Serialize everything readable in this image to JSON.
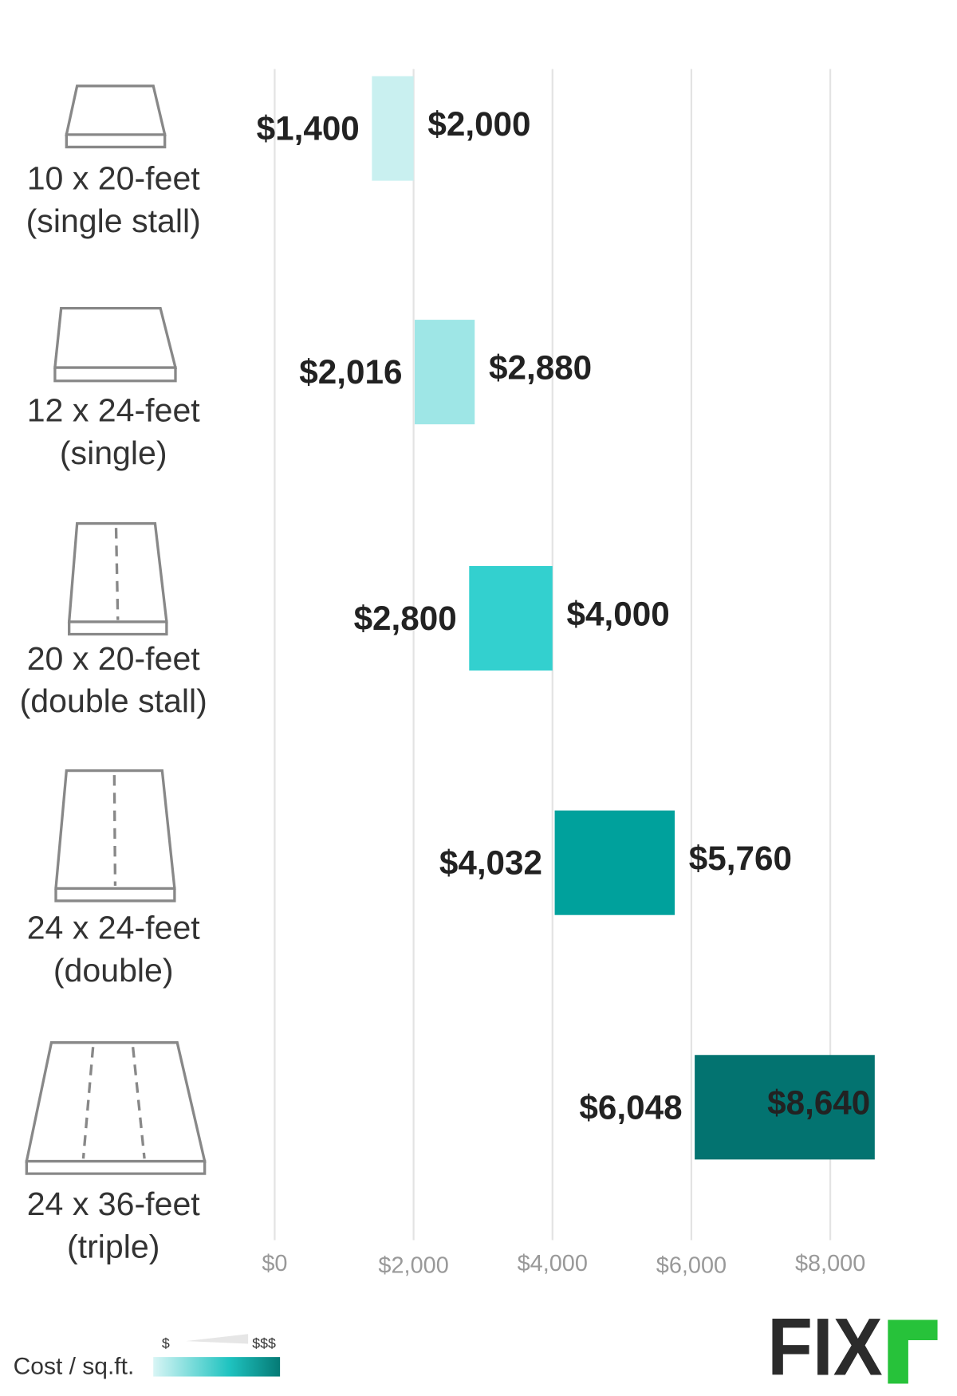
{
  "chart_data": {
    "type": "range-bar",
    "categories": [
      "10 x 20-feet\n(single stall)",
      "12 x 24-feet\n(single)",
      "20 x 20-feet\n(double stall)",
      "24 x 24-feet\n(double)",
      "24 x 36-feet\n(triple)"
    ],
    "low": {
      "values": [
        1400,
        2016,
        2800,
        4032,
        6048
      ],
      "value_labels": [
        "$1,400",
        "$2,016",
        "$2,800",
        "$4,032",
        "$6,048"
      ]
    },
    "high": {
      "values": [
        2000,
        2880,
        4000,
        5760,
        8640
      ],
      "value_labels": [
        "$2,000",
        "$2,880",
        "$4,000",
        "$5,760",
        "$8,640"
      ]
    },
    "colors": [
      "#c9f0f0",
      "#9ee6e6",
      "#33d0cf",
      "#00a19c",
      "#037370"
    ],
    "xlim": [
      0,
      9000
    ],
    "xticks": [
      {
        "value": 0,
        "label": "$0"
      },
      {
        "value": 2000,
        "label": "$2,000"
      },
      {
        "value": 4000,
        "label": "$4,000"
      },
      {
        "value": 6000,
        "label": "$6,000"
      },
      {
        "value": 8000,
        "label": "$8,000"
      }
    ],
    "grid": true,
    "legend": {
      "title": "Cost / sq.ft.",
      "low_label": "$",
      "high_label": "$$$"
    },
    "logo": "FIX"
  }
}
